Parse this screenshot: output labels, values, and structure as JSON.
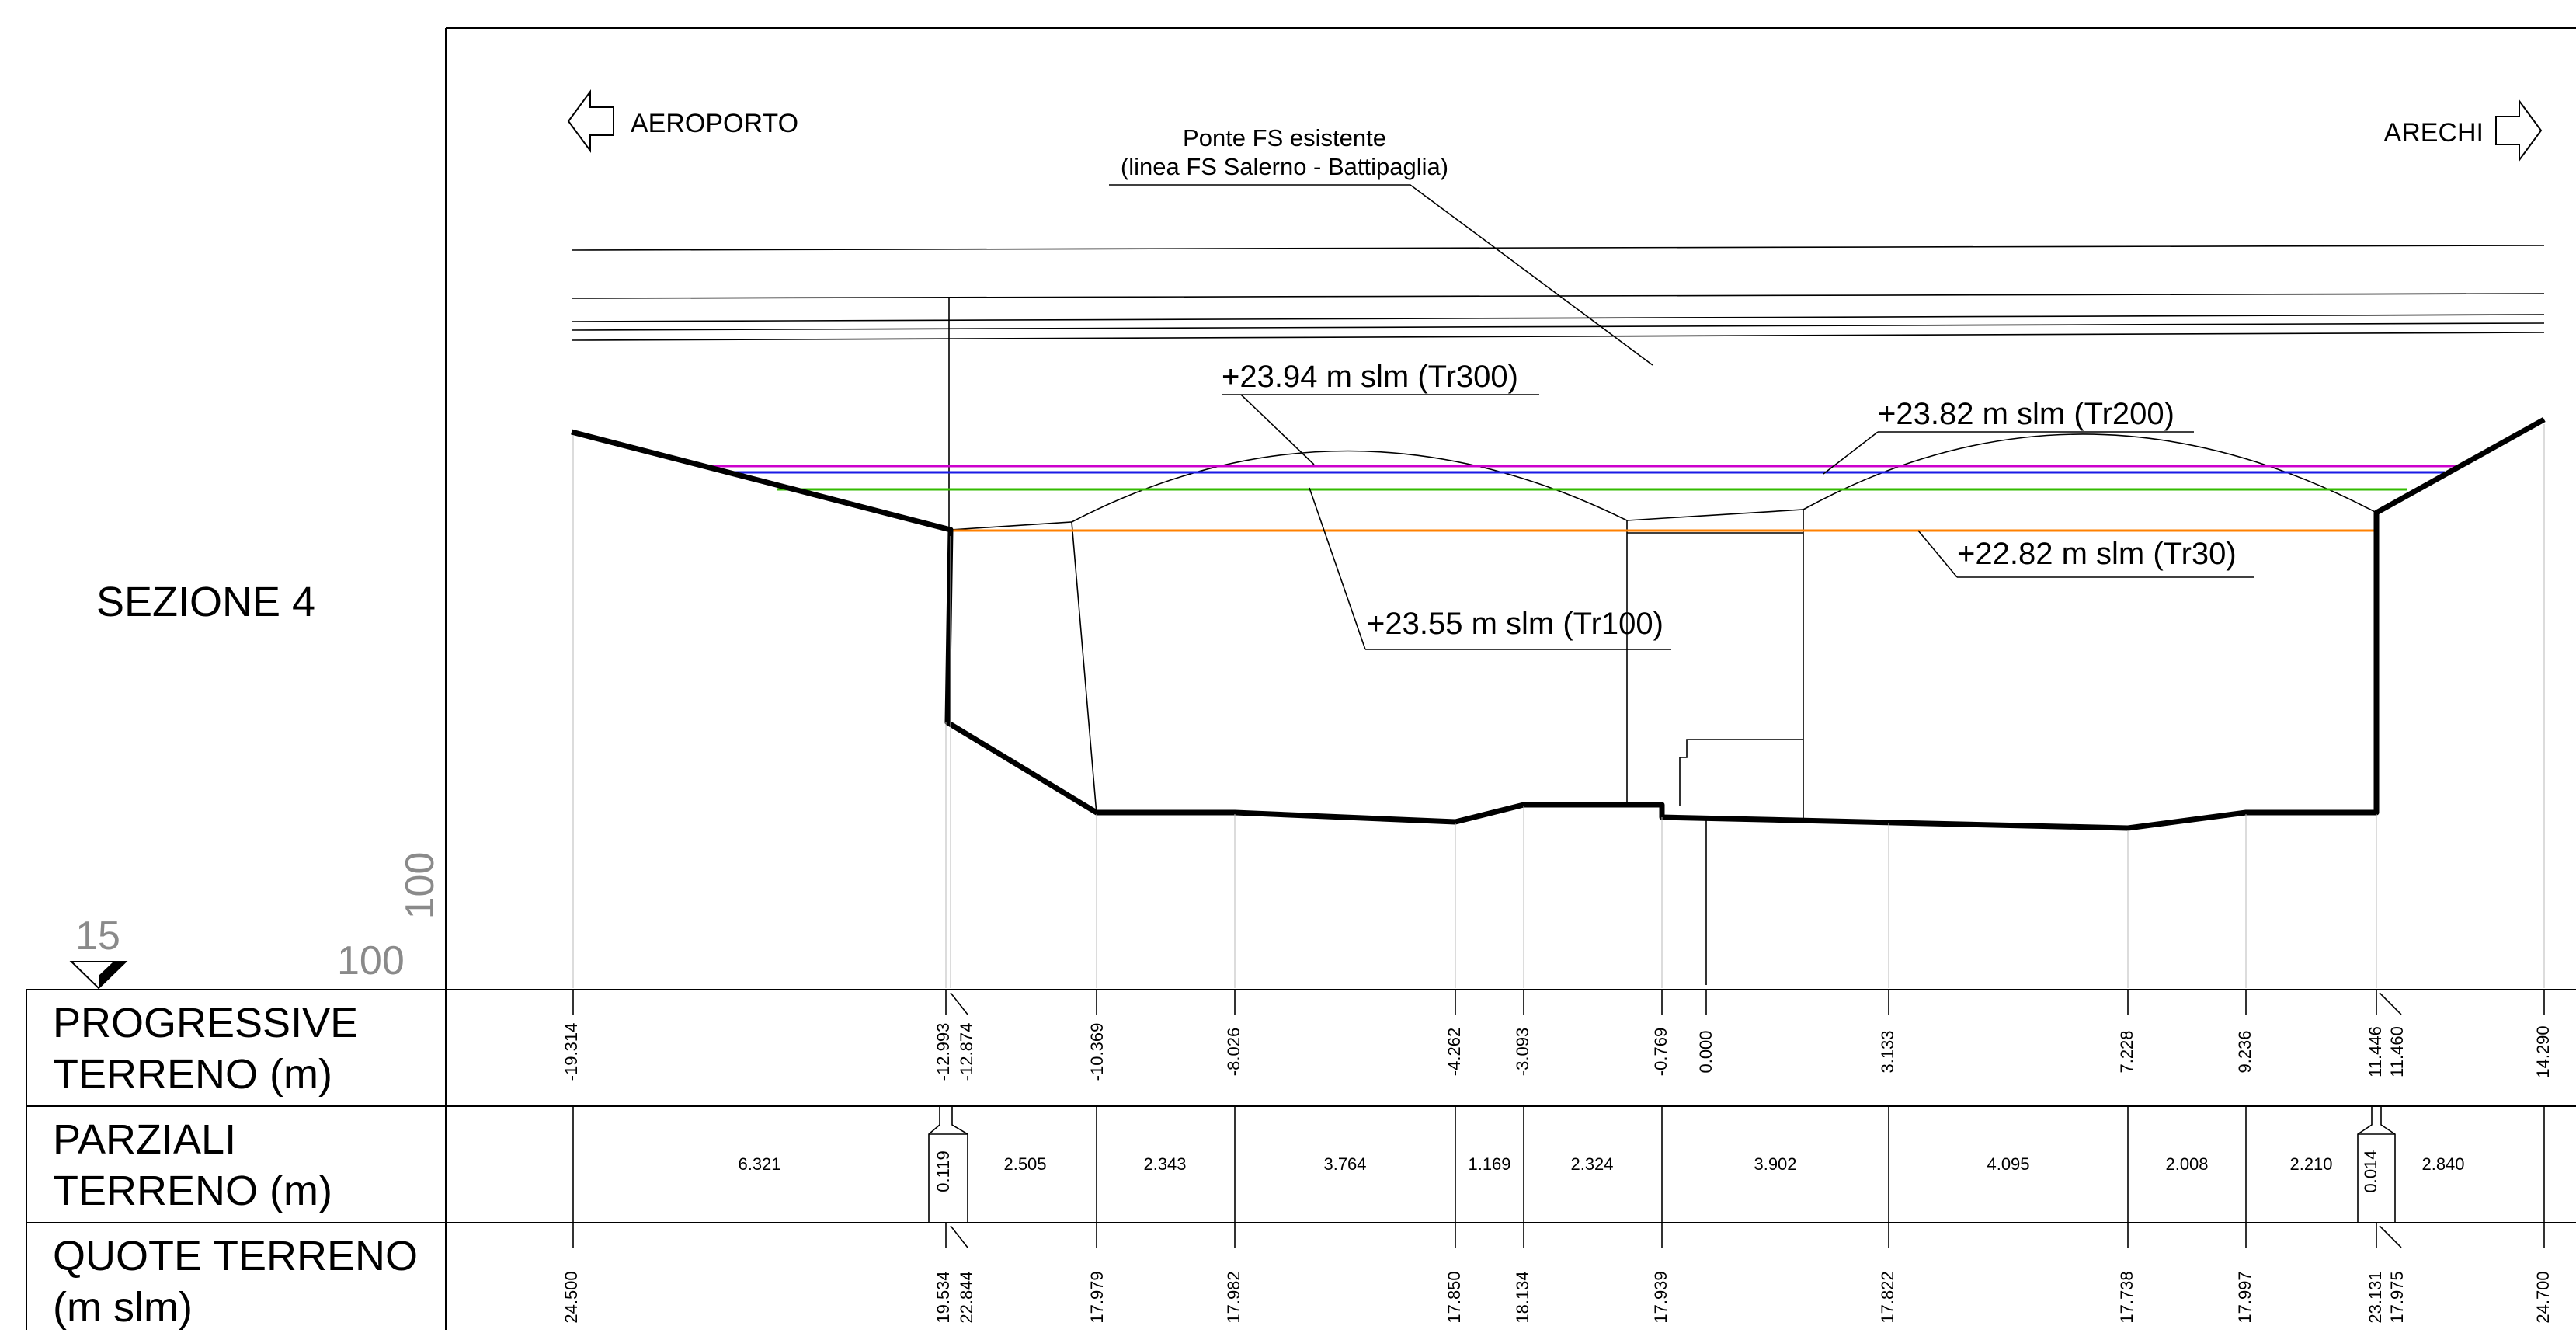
{
  "section_title": "SEZIONE 4",
  "scale_marks": {
    "a": "15",
    "b": "100",
    "c": "100"
  },
  "directions": {
    "left": "AEROPORTO",
    "right": "ARECHI"
  },
  "bridge_note": {
    "line1": "Ponte FS esistente",
    "line2": "(linea FS Salerno - Battipaglia)"
  },
  "water_levels": {
    "tr300": {
      "label": "+23.94 m slm (Tr300)",
      "color": "#cc00cc"
    },
    "tr200": {
      "label": "+23.82 m slm (Tr200)",
      "color": "#1a1ae6"
    },
    "tr100": {
      "label": "+23.55 m slm (Tr100)",
      "color": "#33bb00"
    },
    "tr30": {
      "label": "+22.82 m slm (Tr30)",
      "color": "#ff8000"
    }
  },
  "table": {
    "row_labels": [
      [
        "PROGRESSIVE",
        "TERRENO (m)"
      ],
      [
        "PARZIALI",
        "TERRENO (m)"
      ],
      [
        "QUOTE TERRENO",
        "(m slm)"
      ]
    ],
    "progressive": [
      "-19.314",
      "-12.993",
      "-12.874",
      "-10.369",
      "-8.026",
      "-4.262",
      "-3.093",
      "-0.769",
      "0.000",
      "3.133",
      "7.228",
      "9.236",
      "11.446",
      "11.460",
      "14.290"
    ],
    "parziali": [
      "6.321",
      "0.119",
      "2.505",
      "2.343",
      "3.764",
      "1.169",
      "2.324",
      "3.902",
      "4.095",
      "2.008",
      "2.210",
      "0.014",
      "2.840"
    ],
    "quote": [
      "24.500",
      "19.534",
      "22.844",
      "17.979",
      "17.982",
      "17.850",
      "18.134",
      "17.939",
      "17.822",
      "17.738",
      "17.997",
      "23.131",
      "17.975",
      "24.700"
    ]
  }
}
